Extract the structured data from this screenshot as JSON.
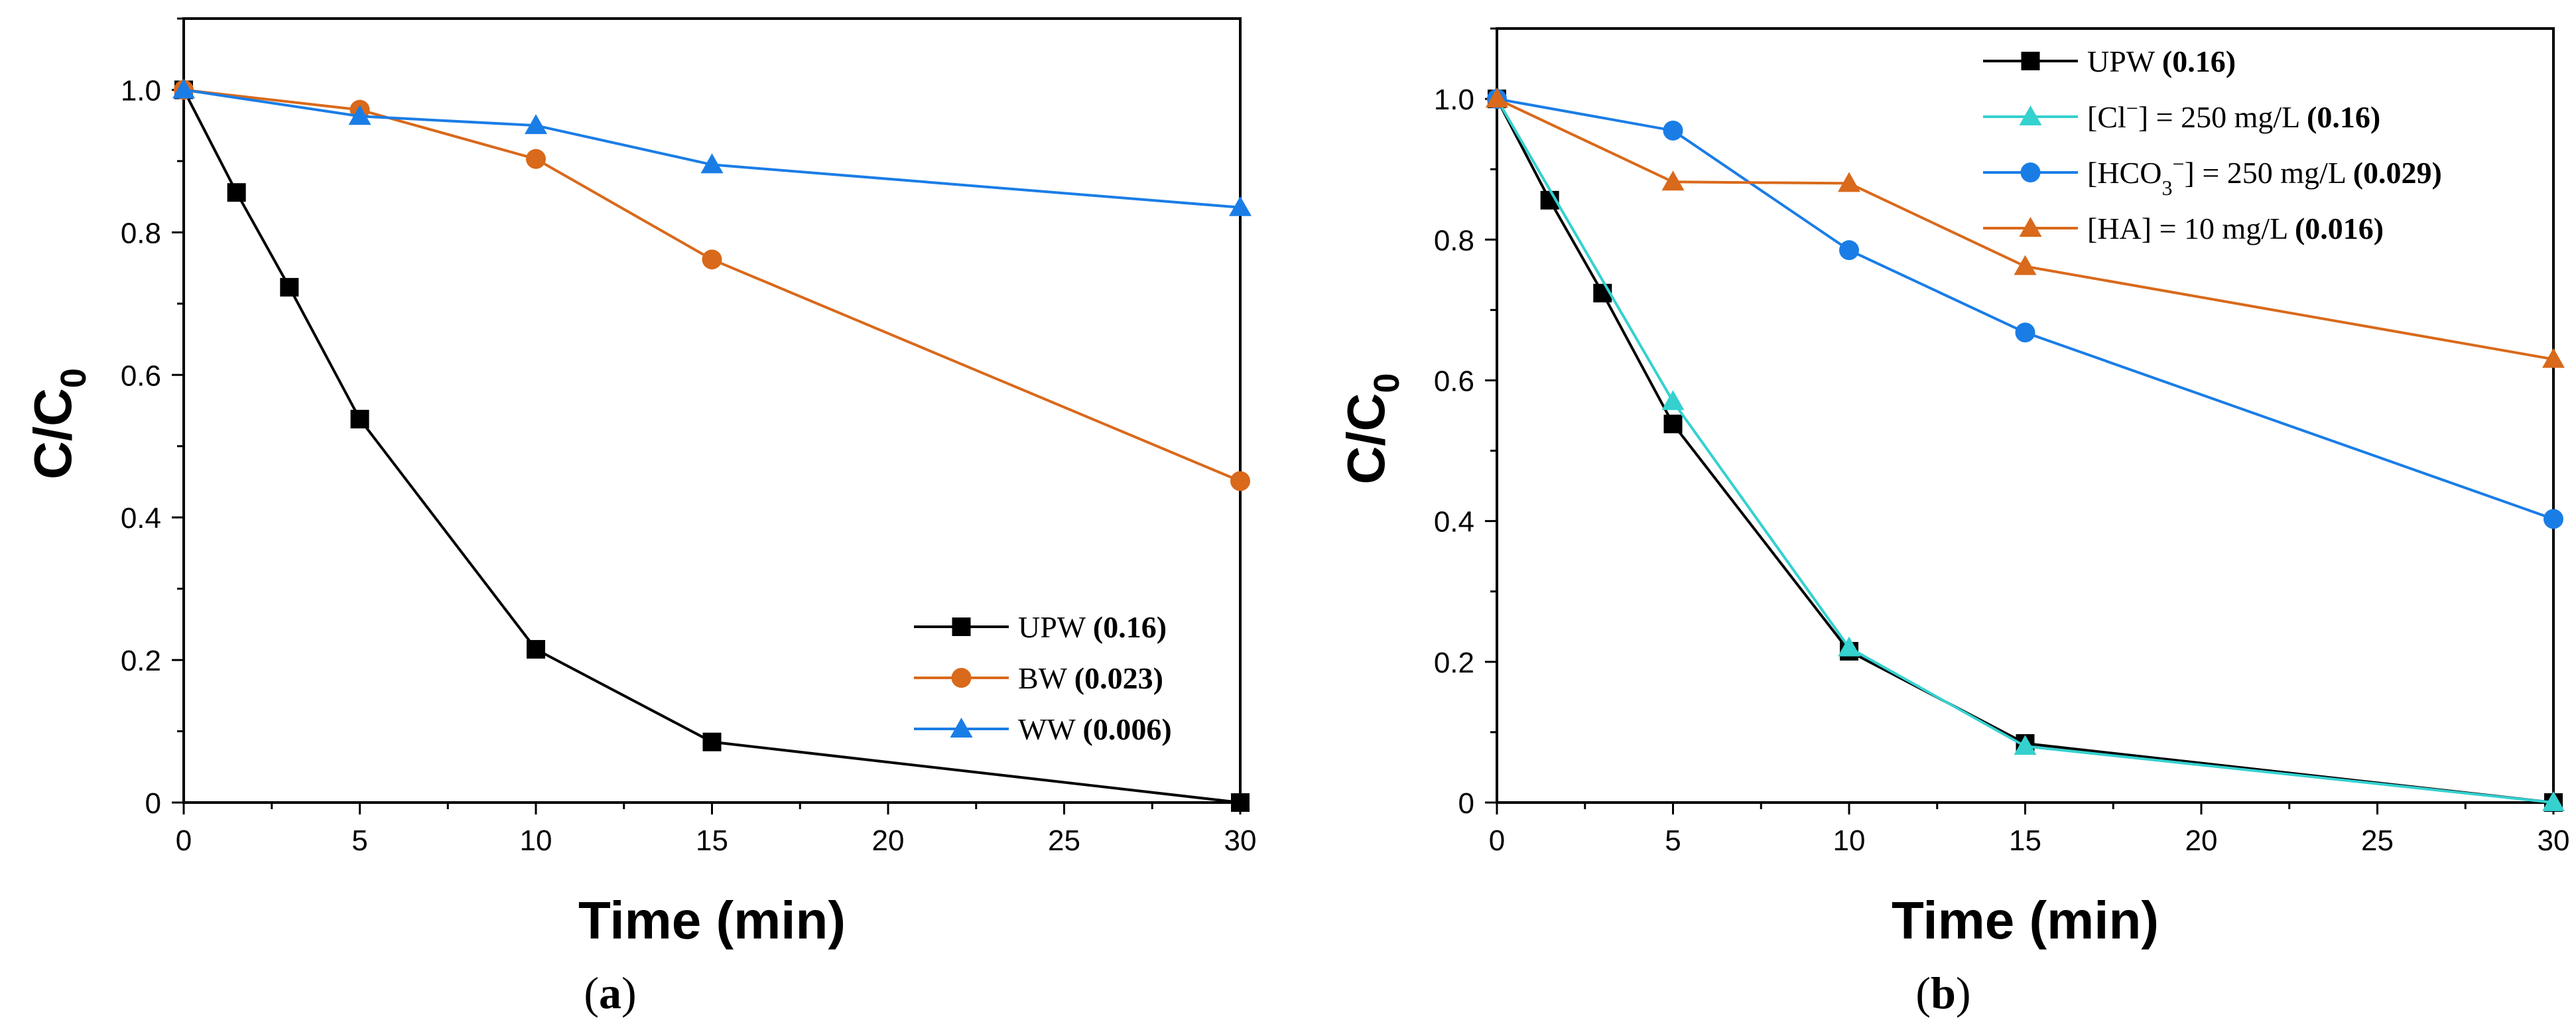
{
  "colors": {
    "black": "#000000",
    "orange": "#d9691b",
    "blue": "#1a7de6",
    "cyan": "#34d1cf"
  },
  "chart_data": [
    {
      "type": "line",
      "panel_label": [
        "(",
        "a",
        ")"
      ],
      "xlabel": "Time (min)",
      "ylabel": [
        "C/C",
        "0"
      ],
      "xlim": [
        0,
        30
      ],
      "ylim": [
        0,
        1.1
      ],
      "xticks": [
        0,
        5,
        10,
        15,
        20,
        25,
        30
      ],
      "yticks": [
        0,
        0.2,
        0.4,
        0.6,
        0.8,
        1.0
      ],
      "xtick_labels": [
        "0",
        "5",
        "10",
        "15",
        "20",
        "25",
        "30"
      ],
      "ytick_labels": [
        "0",
        "0.2",
        "0.4",
        "0.6",
        "0.8",
        "1.0"
      ],
      "legend_position": "bottom-right",
      "series": [
        {
          "name": "UPW",
          "rate": "(0.16)",
          "color": "#000000",
          "marker": "square",
          "x": [
            0,
            1.5,
            3,
            5,
            10,
            15,
            30
          ],
          "y": [
            1.0,
            0.856,
            0.723,
            0.538,
            0.215,
            0.085,
            0.0
          ]
        },
        {
          "name": "BW",
          "rate": "(0.023)",
          "color": "#d9691b",
          "marker": "circle",
          "x": [
            0,
            5,
            10,
            15,
            30
          ],
          "y": [
            1.0,
            0.972,
            0.903,
            0.762,
            0.451
          ]
        },
        {
          "name": "WW",
          "rate": "(0.006)",
          "color": "#1a7de6",
          "marker": "triangle",
          "x": [
            0,
            5,
            10,
            15,
            30
          ],
          "y": [
            1.0,
            0.963,
            0.95,
            0.895,
            0.835
          ]
        }
      ]
    },
    {
      "type": "line",
      "panel_label": [
        "(",
        "b",
        ")"
      ],
      "xlabel": "Time (min)",
      "ylabel": [
        "C/C",
        "0"
      ],
      "xlim": [
        0,
        30
      ],
      "ylim": [
        0,
        1.1
      ],
      "xticks": [
        0,
        5,
        10,
        15,
        20,
        25,
        30
      ],
      "yticks": [
        0,
        0.2,
        0.4,
        0.6,
        0.8,
        1.0
      ],
      "xtick_labels": [
        "0",
        "5",
        "10",
        "15",
        "20",
        "25",
        "30"
      ],
      "ytick_labels": [
        "0",
        "0.2",
        "0.4",
        "0.6",
        "0.8",
        "1.0"
      ],
      "legend_position": "top-right",
      "series": [
        {
          "name": "UPW",
          "name_parts": [
            [
              "UPW",
              ""
            ]
          ],
          "rate": "(0.16)",
          "color": "#000000",
          "marker": "square",
          "x": [
            0,
            1.5,
            3,
            5,
            10,
            15,
            30
          ],
          "y": [
            1.0,
            0.856,
            0.724,
            0.538,
            0.215,
            0.084,
            0.0
          ]
        },
        {
          "name": "[Cl⁻] = 250 mg/L",
          "name_parts": [
            [
              "[Cl",
              ""
            ],
            [
              "−",
              "sup"
            ],
            [
              "] = 250 mg/L",
              ""
            ]
          ],
          "rate": "(0.16)",
          "color": "#34d1cf",
          "marker": "triangle",
          "x": [
            0,
            5,
            10,
            15,
            30
          ],
          "y": [
            1.0,
            0.57,
            0.22,
            0.08,
            0.0
          ]
        },
        {
          "name": "[HCO₃⁻] = 250 mg/L",
          "name_parts": [
            [
              "[HCO",
              ""
            ],
            [
              "3",
              "sub"
            ],
            [
              "−",
              "sup"
            ],
            [
              "] = 250 mg/L",
              ""
            ]
          ],
          "rate": "(0.029)",
          "color": "#1a7de6",
          "marker": "circle",
          "x": [
            0,
            5,
            10,
            15,
            30
          ],
          "y": [
            1.0,
            0.955,
            0.785,
            0.668,
            0.403
          ]
        },
        {
          "name": "[HA] = 10 mg/L",
          "name_parts": [
            [
              "[HA] = 10 mg/L",
              ""
            ]
          ],
          "rate": "(0.016)",
          "color": "#d9691b",
          "marker": "triangle",
          "x": [
            0,
            5,
            10,
            15,
            30
          ],
          "y": [
            1.0,
            0.882,
            0.88,
            0.762,
            0.63
          ]
        }
      ]
    }
  ]
}
